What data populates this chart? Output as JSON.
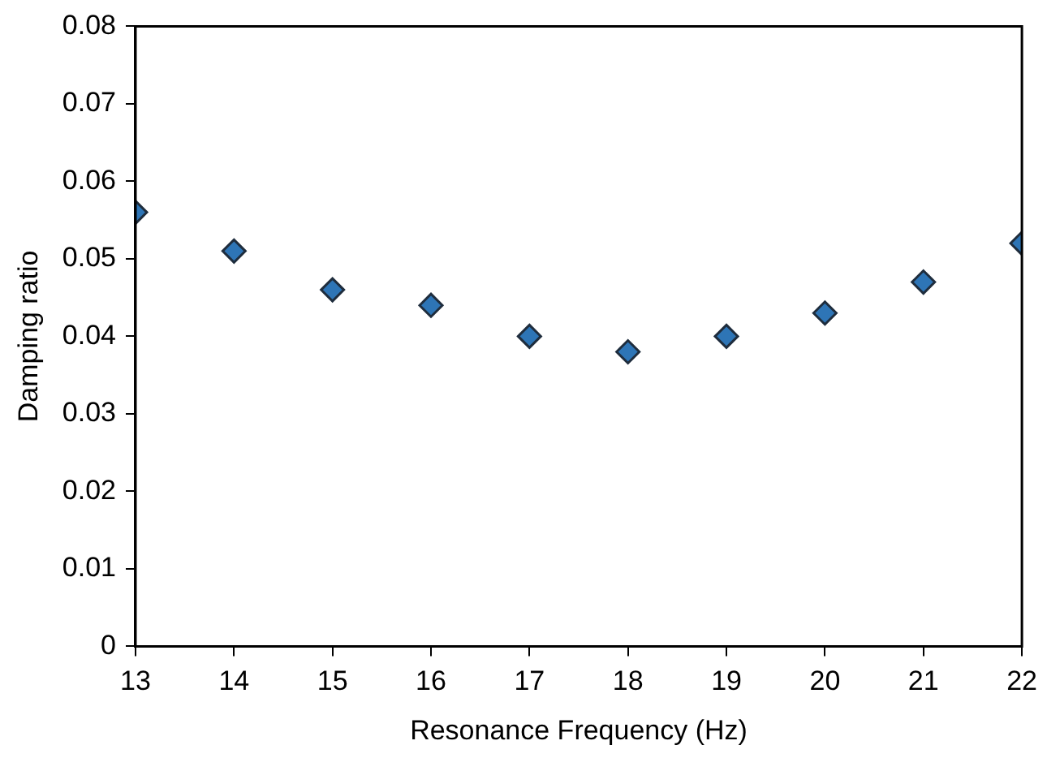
{
  "chart_data": {
    "type": "scatter",
    "xlabel": "Resonance Frequency (Hz)",
    "ylabel": "Damping ratio",
    "x": [
      13,
      14,
      15,
      16,
      17,
      18,
      19,
      20,
      21,
      22
    ],
    "series": [
      {
        "color": "#2e75b6",
        "values": [
          0.056,
          0.051,
          0.046,
          0.044,
          0.04,
          0.038,
          0.04,
          0.043,
          0.047,
          0.052
        ]
      }
    ],
    "xlim": [
      13,
      22
    ],
    "xticks": [
      13,
      14,
      15,
      16,
      17,
      18,
      19,
      20,
      21,
      22
    ],
    "ylim": [
      0,
      0.08
    ],
    "yticks": [
      0,
      0.01,
      0.02,
      0.03,
      0.04,
      0.05,
      0.06,
      0.07,
      0.08
    ],
    "grid": false,
    "legend": false,
    "marker": "diamond"
  }
}
